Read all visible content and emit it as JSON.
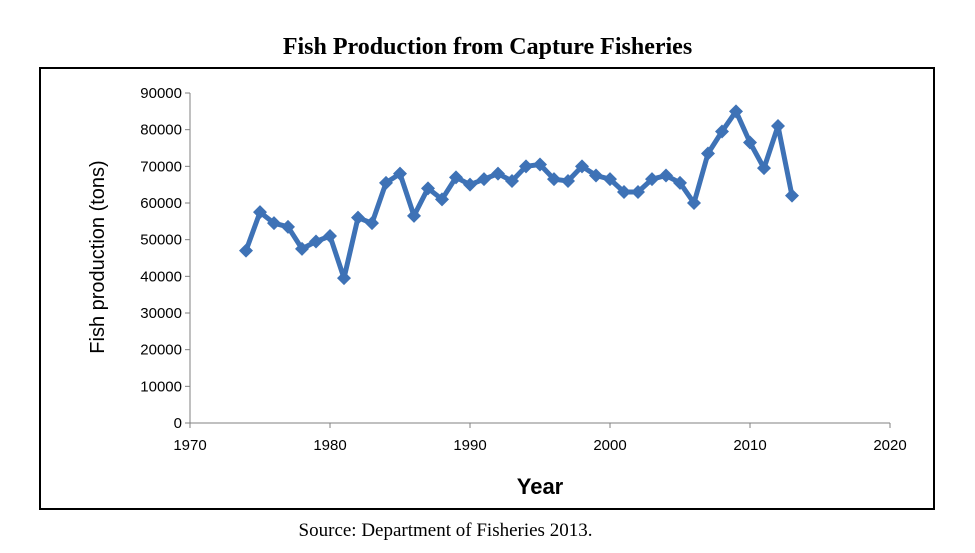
{
  "title": "Fish Production from Capture Fisheries",
  "source": "Source: Department of Fisheries 2013.",
  "chart_data": {
    "type": "line",
    "title": "Fish Production from Capture Fisheries",
    "xlabel": "Year",
    "ylabel": "Fish production (tons)",
    "xlim": [
      1970,
      2020
    ],
    "ylim": [
      0,
      90000
    ],
    "x_ticks": [
      1970,
      1980,
      1990,
      2000,
      2010,
      2020
    ],
    "y_ticks": [
      0,
      10000,
      20000,
      30000,
      40000,
      50000,
      60000,
      70000,
      80000,
      90000
    ],
    "grid": false,
    "legend": "none",
    "marker": "diamond",
    "color": "#3e72b6",
    "series": [
      {
        "x": [
          1974,
          1975,
          1976,
          1977,
          1978,
          1979,
          1980,
          1981,
          1982,
          1983,
          1984,
          1985,
          1986,
          1987,
          1988,
          1989,
          1990,
          1991,
          1992,
          1993,
          1994,
          1995,
          1996,
          1997,
          1998,
          1999,
          2000,
          2001,
          2002,
          2003,
          2004,
          2005,
          2006,
          2007,
          2008,
          2009,
          2010,
          2011,
          2012,
          2013
        ],
        "y": [
          47000,
          57500,
          54500,
          53500,
          47500,
          49500,
          51000,
          39500,
          56000,
          54500,
          65500,
          68000,
          56500,
          64000,
          61000,
          67000,
          65000,
          66500,
          68000,
          66000,
          70000,
          70500,
          66500,
          66000,
          70000,
          67500,
          66500,
          63000,
          63000,
          66500,
          67500,
          65500,
          60000,
          73500,
          79500,
          85000,
          76500,
          69500,
          81000,
          62000
        ]
      }
    ]
  }
}
